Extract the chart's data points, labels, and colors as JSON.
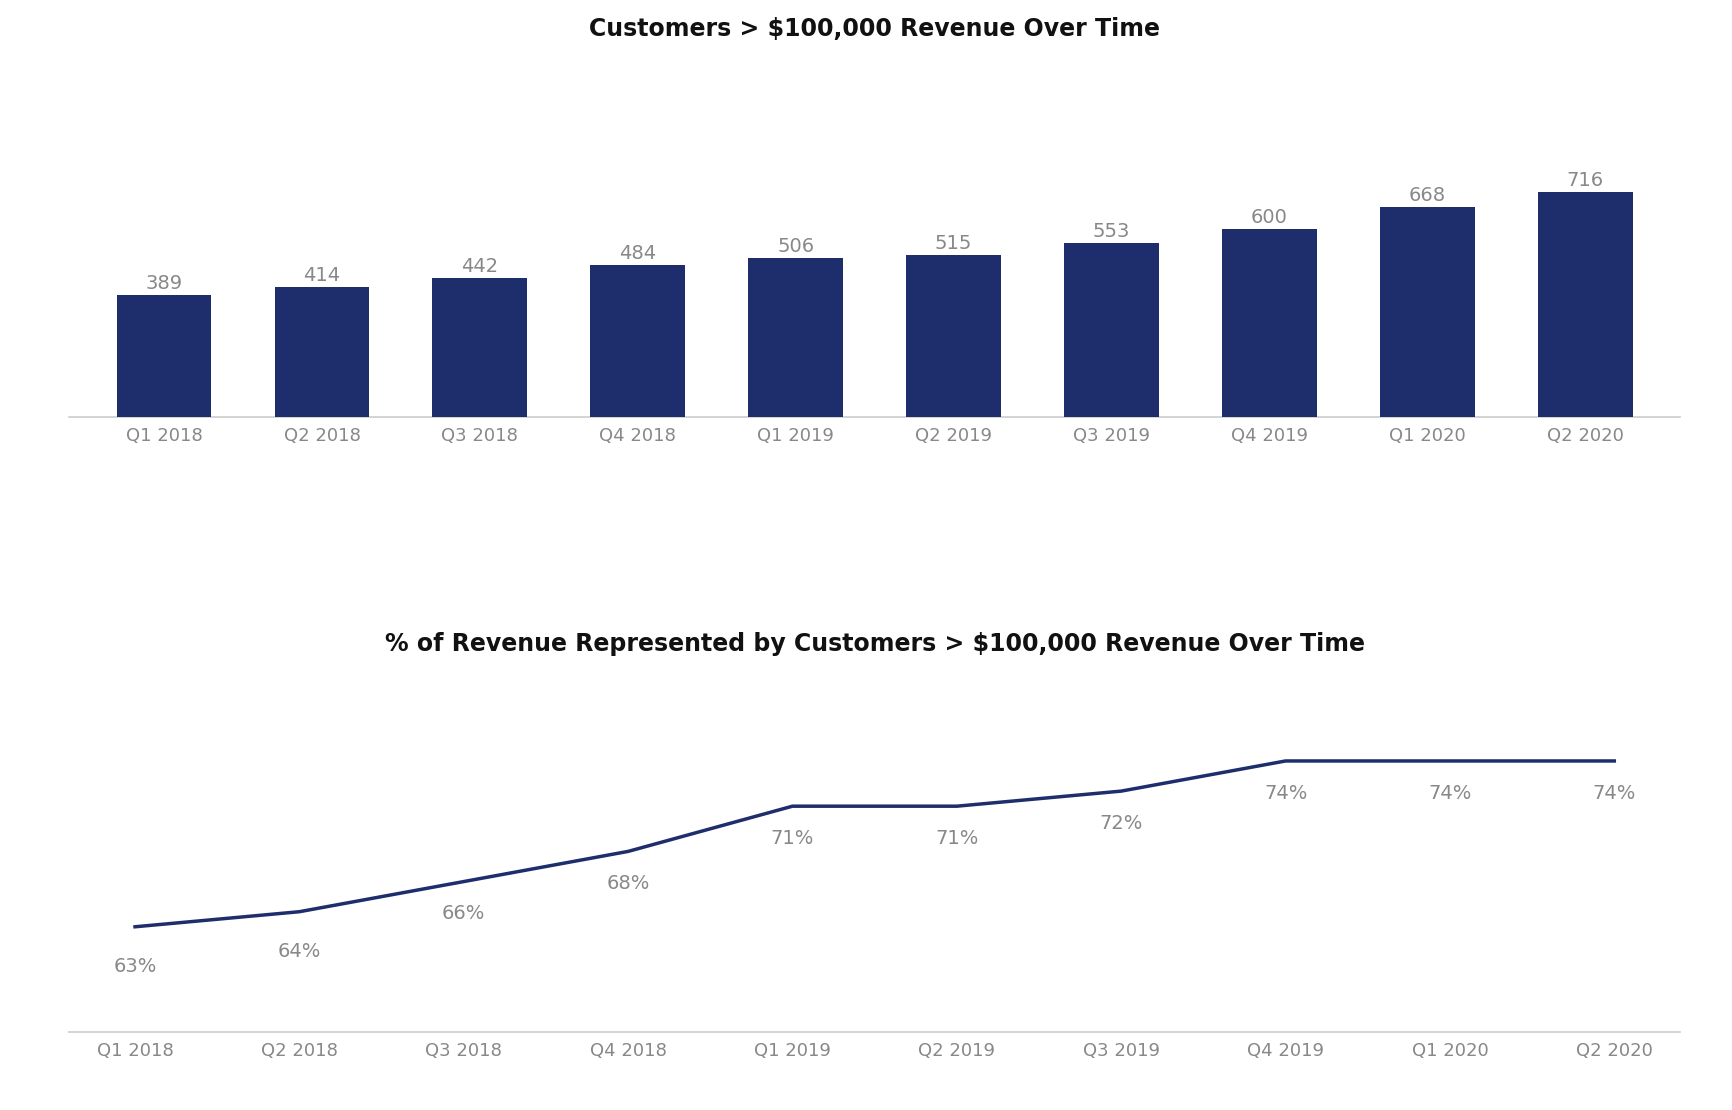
{
  "bar_categories": [
    "Q1 2018",
    "Q2 2018",
    "Q3 2018",
    "Q4 2018",
    "Q1 2019",
    "Q2 2019",
    "Q3 2019",
    "Q4 2019",
    "Q1 2020",
    "Q2 2020"
  ],
  "bar_values": [
    389,
    414,
    442,
    484,
    506,
    515,
    553,
    600,
    668,
    716
  ],
  "bar_color": "#1e2d6b",
  "bar_title": "Customers > $100,000 Revenue Over Time",
  "line_categories": [
    "Q1 2018",
    "Q2 2018",
    "Q3 2018",
    "Q4 2018",
    "Q1 2019",
    "Q2 2019",
    "Q3 2019",
    "Q4 2019",
    "Q1 2020",
    "Q2 2020"
  ],
  "line_values": [
    63,
    64,
    66,
    68,
    71,
    71,
    72,
    74,
    74,
    74
  ],
  "line_labels": [
    "63%",
    "64%",
    "66%",
    "68%",
    "71%",
    "71%",
    "72%",
    "74%",
    "74%",
    "74%"
  ],
  "line_color": "#1e2d6b",
  "line_title": "% of Revenue Represented by Customers > $100,000 Revenue Over Time",
  "background_color": "#ffffff",
  "title_fontsize": 17,
  "tick_fontsize": 13,
  "annotation_fontsize": 14,
  "spine_color": "#cccccc",
  "label_color": "#888888"
}
